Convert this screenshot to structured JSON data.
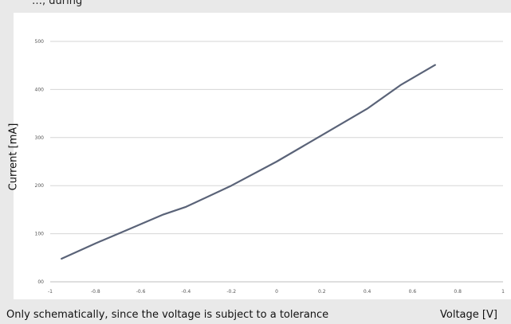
{
  "top_strip_text": "…, during",
  "footer_note": "Only schematically, since the voltage is subject to a tolerance",
  "chart_data": {
    "type": "line",
    "title": "",
    "xlabel": "Voltage [V]",
    "ylabel": "Current  [mA]",
    "xlim": [
      -1,
      1
    ],
    "ylim": [
      0,
      500
    ],
    "x_ticks": [
      -1,
      -0.8,
      -0.6,
      -0.4,
      -0.2,
      0,
      0.2,
      0.4,
      0.6,
      0.8,
      1
    ],
    "x_tick_labels": [
      "-1",
      "-0.8",
      "-0.6",
      "-0.4",
      "-0.2",
      "0",
      "0.2",
      "0.4",
      "0.6",
      "0.8",
      "1"
    ],
    "y_ticks": [
      0,
      100,
      200,
      300,
      400,
      500
    ],
    "y_tick_labels": [
      "00",
      "100",
      "200",
      "300",
      "400",
      "500"
    ],
    "grid": true,
    "series": [
      {
        "color": "#5a6378",
        "x": [
          -0.95,
          -0.8,
          -0.65,
          -0.5,
          -0.4,
          -0.2,
          0,
          0.2,
          0.4,
          0.55,
          0.7
        ],
        "y": [
          48,
          80,
          110,
          140,
          156,
          200,
          250,
          305,
          360,
          410,
          451
        ]
      }
    ],
    "colors": {
      "grid": "#d6d6d6",
      "axis": "#bdbdbd",
      "tick_text": "#555555"
    }
  }
}
